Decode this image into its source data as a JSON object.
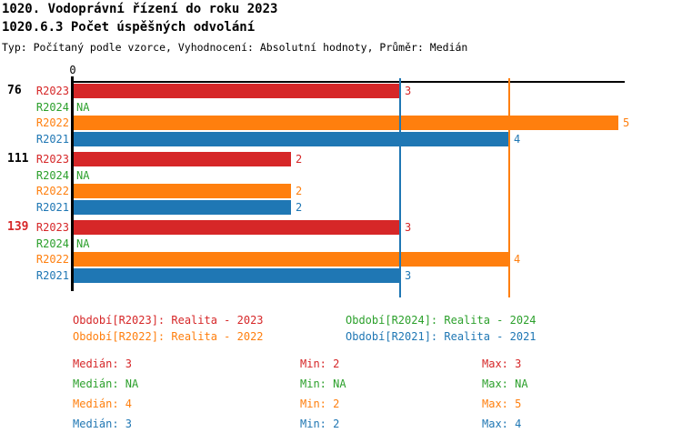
{
  "header": {
    "title": "1020. Vodoprávní řízení do roku 2023",
    "subtitle": "1020.6.3 Počet úspěšných odvolání",
    "meta": "Typ: Počítaný podle vzorce, Vyhodnocení: Absolutní hodnoty, Průměr: Medián"
  },
  "chart_data": {
    "type": "bar",
    "orientation": "horizontal",
    "title": "1020.6.3 Počet úspěšných odvolání",
    "origin_tick_label": "0",
    "xlim": [
      0,
      5
    ],
    "grid": false,
    "na_label": "NA",
    "series_order": [
      "R2023",
      "R2024",
      "R2022",
      "R2021"
    ],
    "series_colors": {
      "R2023": "#d62728",
      "R2024": "#2ca02c",
      "R2022": "#ff7f0e",
      "R2021": "#1f77b4"
    },
    "groups": [
      {
        "label": "76",
        "label_color": "#000000",
        "values": {
          "R2023": 3,
          "R2024": null,
          "R2022": 5,
          "R2021": 4
        }
      },
      {
        "label": "111",
        "label_color": "#000000",
        "values": {
          "R2023": 2,
          "R2024": null,
          "R2022": 2,
          "R2021": 2
        }
      },
      {
        "label": "139",
        "label_color": "#d62728",
        "values": {
          "R2023": 3,
          "R2024": null,
          "R2022": 4,
          "R2021": 3
        }
      }
    ],
    "reference_lines": [
      {
        "value": 3,
        "color": "#1f77b4",
        "meaning": "median R2021"
      },
      {
        "value": 4,
        "color": "#ff7f0e",
        "meaning": "median R2022"
      }
    ],
    "legend": [
      {
        "text": "Období[R2023]: Realita - 2023",
        "color": "#d62728"
      },
      {
        "text": "Období[R2024]: Realita - 2024",
        "color": "#2ca02c"
      },
      {
        "text": "Období[R2022]: Realita - 2022",
        "color": "#ff7f0e"
      },
      {
        "text": "Období[R2021]: Realita - 2021",
        "color": "#1f77b4"
      }
    ],
    "stats": [
      {
        "color": "#d62728",
        "median": "Medián: 3",
        "min": "Min: 2",
        "max": "Max: 3"
      },
      {
        "color": "#2ca02c",
        "median": "Medián: NA",
        "min": "Min: NA",
        "max": "Max: NA"
      },
      {
        "color": "#ff7f0e",
        "median": "Medián: 4",
        "min": "Min: 2",
        "max": "Max: 5"
      },
      {
        "color": "#1f77b4",
        "median": "Medián: 3",
        "min": "Min: 2",
        "max": "Max: 4"
      }
    ]
  }
}
